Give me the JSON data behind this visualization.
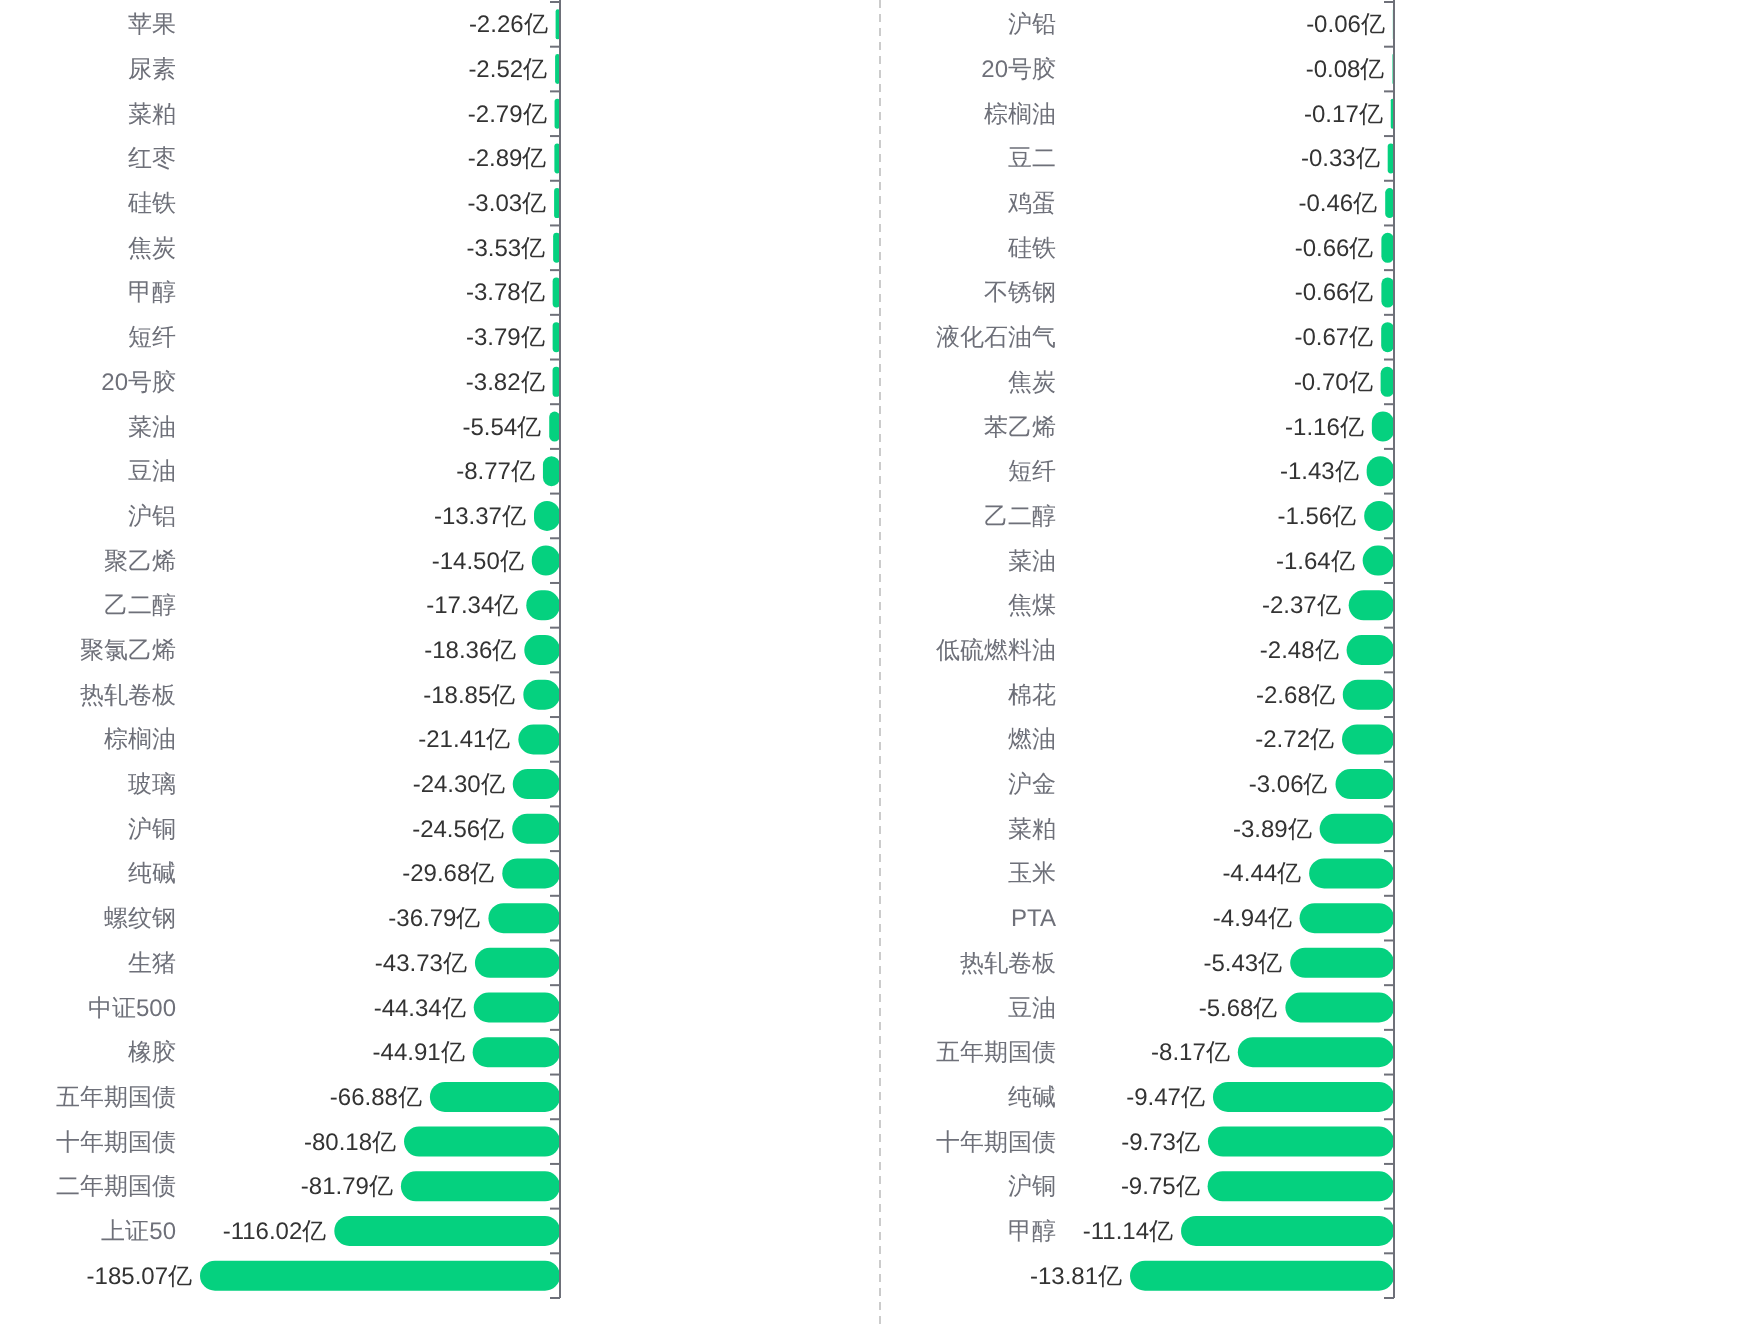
{
  "chart_data": [
    {
      "type": "bar",
      "orientation": "horizontal",
      "color": "#05d17f",
      "categories": [
        "苹果",
        "尿素",
        "菜粕",
        "红枣",
        "硅铁",
        "焦炭",
        "甲醇",
        "短纤",
        "20号胶",
        "菜油",
        "豆油",
        "沪铝",
        "聚乙烯",
        "乙二醇",
        "聚氯乙烯",
        "热轧卷板",
        "棕榈油",
        "玻璃",
        "沪铜",
        "纯碱",
        "螺纹钢",
        "生猪",
        "中证500",
        "橡胶",
        "五年期国债",
        "十年期国债",
        "二年期国债",
        "上证50",
        null
      ],
      "values": [
        -2.26,
        -2.52,
        -2.79,
        -2.89,
        -3.03,
        -3.53,
        -3.78,
        -3.79,
        -3.82,
        -5.54,
        -8.77,
        -13.37,
        -14.5,
        -17.34,
        -18.36,
        -18.85,
        -21.41,
        -24.3,
        -24.56,
        -29.68,
        -36.79,
        -43.73,
        -44.34,
        -44.91,
        -66.88,
        -80.18,
        -81.79,
        -116.02,
        -185.07
      ],
      "value_labels": [
        "-2.26亿",
        "-2.52亿",
        "-2.79亿",
        "-2.89亿",
        "-3.03亿",
        "-3.53亿",
        "-3.78亿",
        "-3.79亿",
        "-3.82亿",
        "-5.54亿",
        "-8.77亿",
        "-13.37亿",
        "-14.50亿",
        "-17.34亿",
        "-18.36亿",
        "-18.85亿",
        "-21.41亿",
        "-24.30亿",
        "-24.56亿",
        "-29.68亿",
        "-36.79亿",
        "-43.73亿",
        "-44.34亿",
        "-44.91亿",
        "-66.88亿",
        "-80.18亿",
        "-81.79亿",
        "-116.02亿",
        "-185.07亿"
      ]
    },
    {
      "type": "bar",
      "orientation": "horizontal",
      "color": "#05d17f",
      "categories": [
        "沪铅",
        "20号胶",
        "棕榈油",
        "豆二",
        "鸡蛋",
        "硅铁",
        "不锈钢",
        "液化石油气",
        "焦炭",
        "苯乙烯",
        "短纤",
        "乙二醇",
        "菜油",
        "焦煤",
        "低硫燃料油",
        "棉花",
        "燃油",
        "沪金",
        "菜粕",
        "玉米",
        "PTA",
        "热轧卷板",
        "豆油",
        "五年期国债",
        "纯碱",
        "十年期国债",
        "沪铜",
        "甲醇",
        null
      ],
      "values": [
        -0.06,
        -0.08,
        -0.17,
        -0.33,
        -0.46,
        -0.66,
        -0.66,
        -0.67,
        -0.7,
        -1.16,
        -1.43,
        -1.56,
        -1.64,
        -2.37,
        -2.48,
        -2.68,
        -2.72,
        -3.06,
        -3.89,
        -4.44,
        -4.94,
        -5.43,
        -5.68,
        -8.17,
        -9.47,
        -9.73,
        -9.75,
        -11.14,
        -13.81
      ],
      "value_labels": [
        "-0.06亿",
        "-0.08亿",
        "-0.17亿",
        "-0.33亿",
        "-0.46亿",
        "-0.66亿",
        "-0.66亿",
        "-0.67亿",
        "-0.70亿",
        "-1.16亿",
        "-1.43亿",
        "-1.56亿",
        "-1.64亿",
        "-2.37亿",
        "-2.48亿",
        "-2.68亿",
        "-2.72亿",
        "-3.06亿",
        "-3.89亿",
        "-4.44亿",
        "-4.94亿",
        "-5.43亿",
        "-5.68亿",
        "-8.17亿",
        "-9.47亿",
        "-9.73亿",
        "-9.75亿",
        "-11.14亿",
        "-13.81亿"
      ]
    }
  ]
}
